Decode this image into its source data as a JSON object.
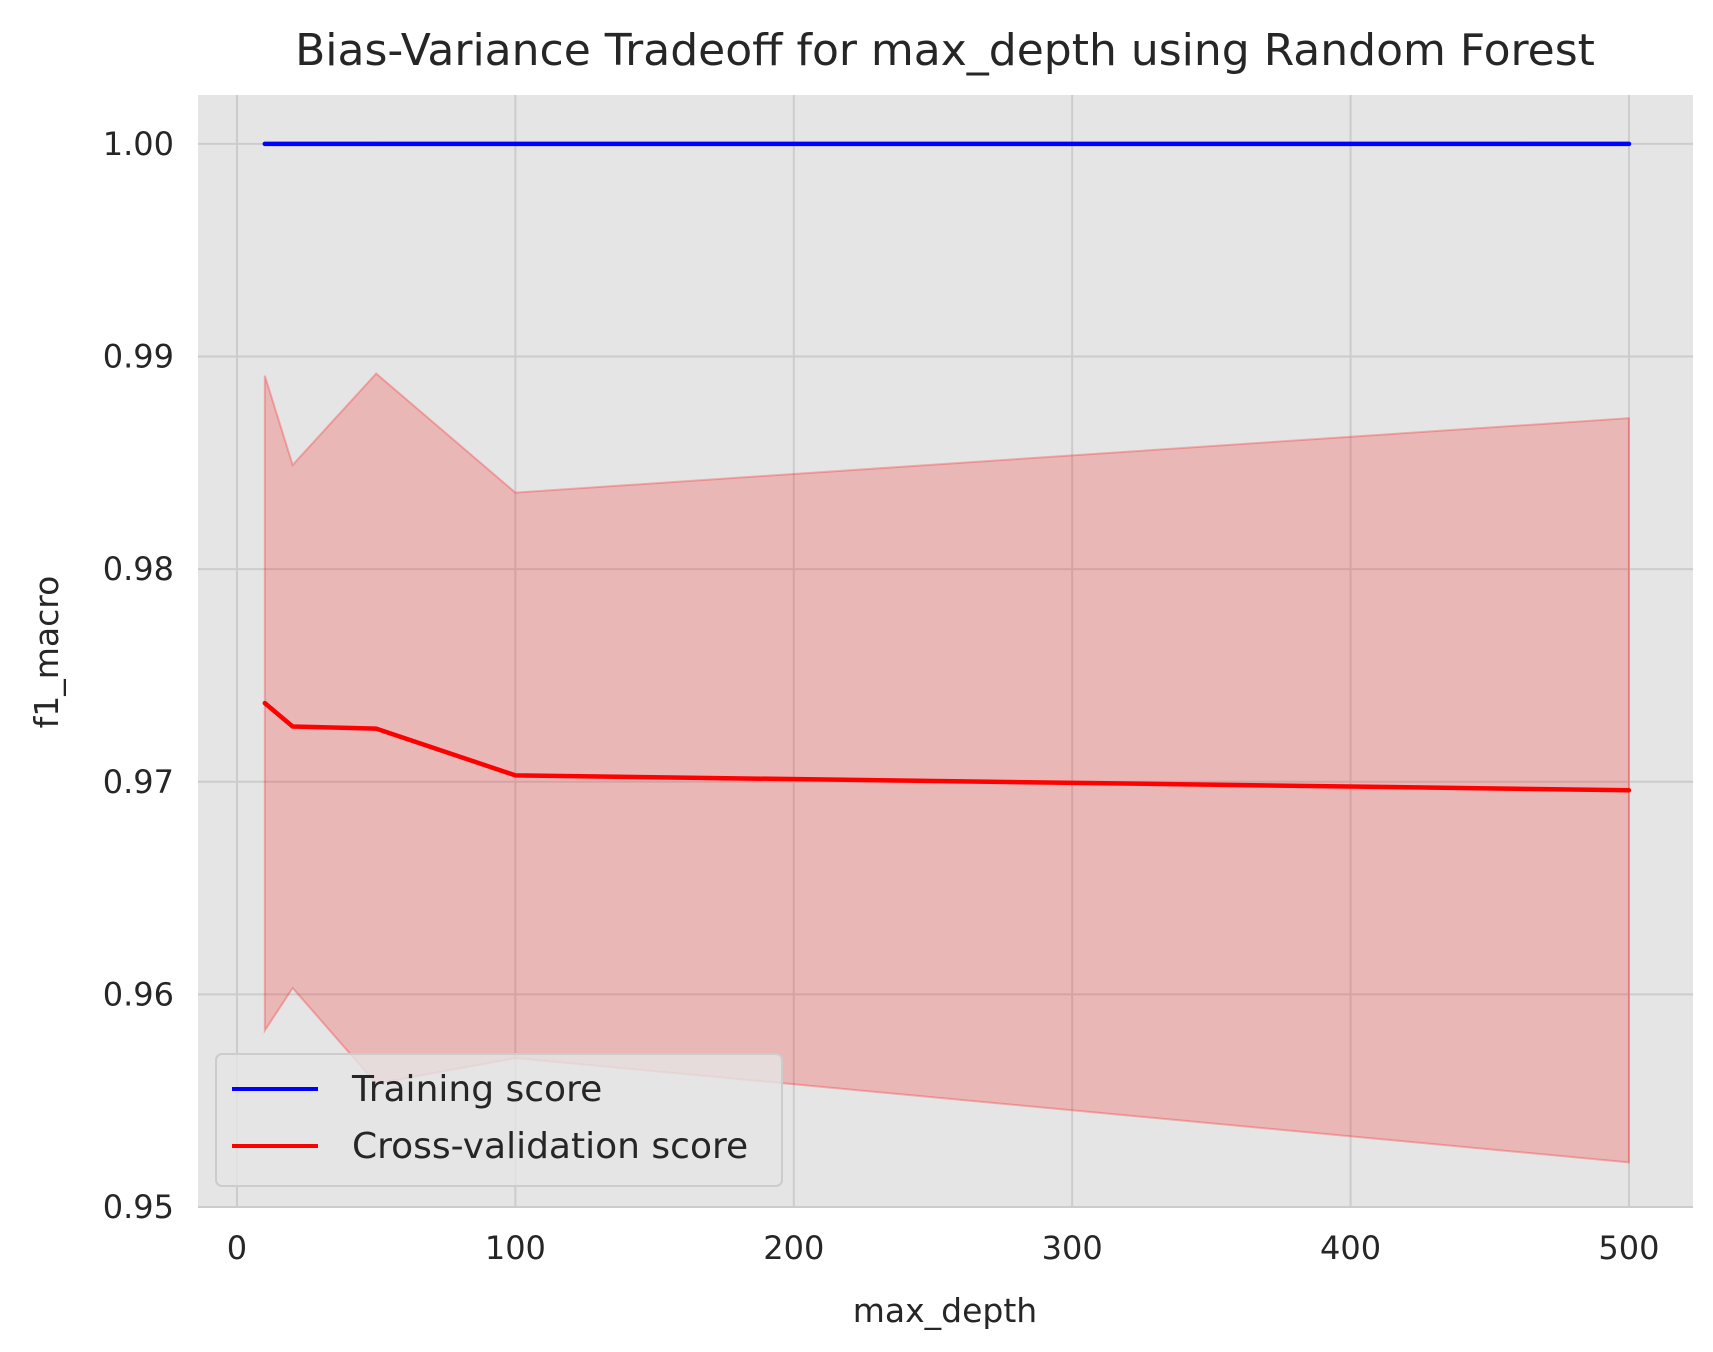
{
  "chart_data": {
    "type": "line",
    "title": "Bias-Variance Tradeoff for max_depth using Random Forest",
    "xlabel": "max_depth",
    "ylabel": "f1_macro",
    "xlim": [
      -14,
      523
    ],
    "ylim": [
      0.95,
      1.0023
    ],
    "x_ticks": [
      0,
      100,
      200,
      300,
      400,
      500
    ],
    "y_ticks": [
      0.95,
      0.96,
      0.97,
      0.98,
      0.99,
      1.0
    ],
    "y_tick_labels": [
      "0.95",
      "0.96",
      "0.97",
      "0.98",
      "0.99",
      "1.00"
    ],
    "grid": true,
    "legend_position": "lower-left",
    "x": [
      10,
      20,
      50,
      100,
      500
    ],
    "series": [
      {
        "name": "Training score",
        "color": "#0000ff",
        "values": [
          1.0,
          1.0,
          1.0,
          1.0,
          1.0
        ]
      },
      {
        "name": "Cross-validation score",
        "color": "#ff0000",
        "values": [
          0.9737,
          0.9726,
          0.9725,
          0.9703,
          0.9696
        ],
        "band_lower": [
          0.9583,
          0.9603,
          0.9558,
          0.957,
          0.9521
        ],
        "band_upper": [
          0.9891,
          0.9849,
          0.9892,
          0.9836,
          0.9871
        ],
        "band_color": "#ff0000"
      }
    ],
    "plot_background": "#e5e5e5",
    "grid_color": "#cccccc"
  }
}
